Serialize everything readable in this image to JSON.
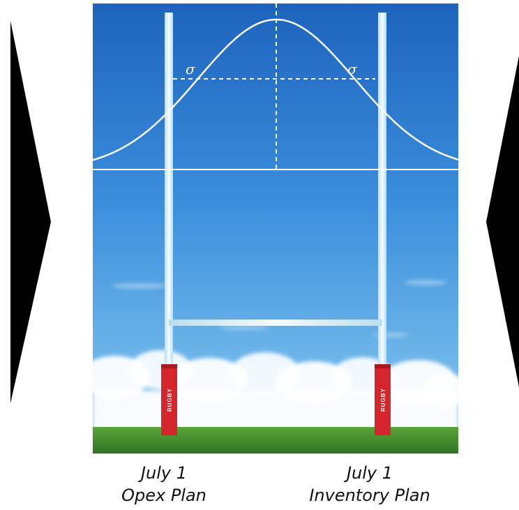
{
  "diagram": {
    "sigma_left_label": "σ",
    "sigma_right_label": "σ",
    "post_pad_text_left": "RUGBY",
    "post_pad_text_right": "RUGBY"
  },
  "captions": {
    "left": {
      "line1": "July 1",
      "line2": "Opex Plan"
    },
    "right": {
      "line1": "July 1",
      "line2": "Inventory Plan"
    }
  },
  "colors": {
    "arrow": "#000000",
    "sky_top": "#1f6cc4",
    "sky_bottom": "#7fc3ee",
    "grass": "#3f8a2e",
    "post": "#dff2fb",
    "pad": "#d3252b",
    "curve": "#ffffff"
  }
}
